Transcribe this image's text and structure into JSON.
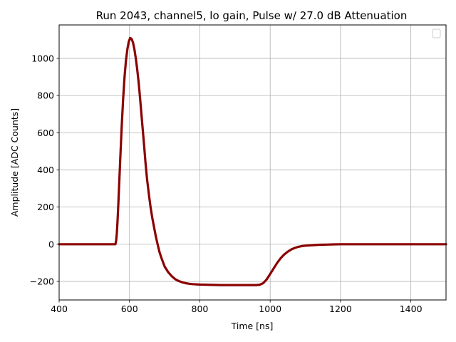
{
  "chart_data": {
    "type": "line",
    "title": "Run 2043, channel5, lo gain, Pulse w/ 27.0 dB Attenuation",
    "xlabel": "Time [ns]",
    "ylabel": "Amplitude [ADC Counts]",
    "xlim": [
      400,
      1500
    ],
    "ylim": [
      -300,
      1180
    ],
    "xticks": [
      400,
      600,
      800,
      1000,
      1200,
      1400
    ],
    "yticks": [
      -200,
      0,
      200,
      400,
      600,
      800,
      1000
    ],
    "xtick_labels": [
      "400",
      "600",
      "800",
      "1000",
      "1200",
      "1400"
    ],
    "ytick_labels": [
      "−200",
      "0",
      "200",
      "400",
      "600",
      "800",
      "1000"
    ],
    "grid": true,
    "legend": {
      "position": "top-right",
      "entries": []
    },
    "series": [
      {
        "color": "#8b0000",
        "x": [
          400,
          560,
          562,
          564,
          566,
          568,
          570,
          574,
          578,
          582,
          586,
          590,
          594,
          598,
          602,
          606,
          610,
          614,
          618,
          622,
          626,
          630,
          634,
          638,
          642,
          646,
          650,
          655,
          660,
          665,
          670,
          675,
          680,
          685,
          690,
          695,
          700,
          710,
          720,
          730,
          740,
          750,
          760,
          770,
          780,
          790,
          800,
          820,
          840,
          860,
          880,
          900,
          920,
          940,
          960,
          970,
          980,
          990,
          1000,
          1010,
          1020,
          1030,
          1040,
          1050,
          1060,
          1070,
          1080,
          1090,
          1100,
          1120,
          1140,
          1160,
          1180,
          1200,
          1300,
          1400,
          1500
        ],
        "y": [
          0,
          0,
          20,
          60,
          120,
          200,
          290,
          470,
          640,
          780,
          900,
          990,
          1050,
          1090,
          1110,
          1105,
          1085,
          1050,
          1000,
          940,
          870,
          790,
          700,
          610,
          520,
          430,
          350,
          270,
          200,
          140,
          90,
          40,
          0,
          -40,
          -70,
          -95,
          -120,
          -150,
          -172,
          -188,
          -198,
          -205,
          -210,
          -213,
          -215,
          -216,
          -217,
          -218,
          -219,
          -220,
          -220,
          -220,
          -220,
          -220,
          -220,
          -218,
          -210,
          -190,
          -160,
          -130,
          -100,
          -75,
          -55,
          -40,
          -28,
          -20,
          -14,
          -10,
          -8,
          -5,
          -3,
          -2,
          -1,
          0,
          0,
          0,
          0
        ]
      }
    ]
  }
}
